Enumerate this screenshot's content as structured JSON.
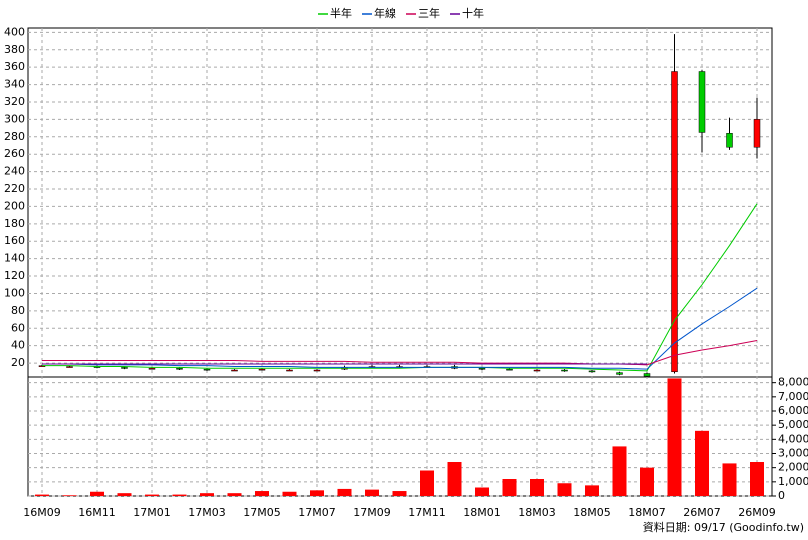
{
  "chart_data": {
    "type": "candlestick",
    "categories": [
      "16M09",
      null,
      "16M11",
      null,
      "17M01",
      null,
      "17M03",
      null,
      "17M05",
      null,
      "17M07",
      null,
      "17M09",
      null,
      "17M11",
      null,
      "18M01",
      null,
      "18M03",
      null,
      "18M05",
      null,
      "18M07",
      null,
      "26M07",
      null,
      "26M09"
    ],
    "open": [
      17,
      16,
      16,
      15,
      14,
      14,
      13,
      12,
      13,
      12,
      12,
      13,
      15,
      15,
      16,
      16,
      14,
      13,
      12,
      12,
      11,
      9,
      8,
      10,
      355,
      284,
      268
    ],
    "high": [
      18,
      17,
      17,
      16,
      15,
      15,
      14,
      13,
      14,
      13,
      13,
      17,
      18,
      18,
      18,
      18,
      15,
      14,
      13,
      13,
      12,
      10,
      9,
      398,
      357,
      302,
      325
    ],
    "low": [
      16,
      15,
      14,
      13,
      13,
      12,
      11,
      11,
      12,
      11,
      11,
      12,
      14,
      14,
      15,
      13,
      12,
      12,
      11,
      10,
      9,
      6,
      4,
      8,
      262,
      265,
      255
    ],
    "close": [
      17,
      16,
      15,
      14,
      14,
      13,
      12,
      12,
      13,
      12,
      12,
      15,
      16,
      16,
      16,
      14,
      13,
      12,
      12,
      11,
      10,
      7,
      5,
      355,
      285,
      268,
      300
    ],
    "up_color": "#ff0000",
    "down_color": "#00cc00",
    "series": [
      {
        "name": "半年",
        "color": "#00cc00",
        "values": [
          17,
          17,
          16,
          16,
          15,
          15,
          14,
          14,
          14,
          14,
          14,
          14,
          14,
          14,
          15,
          15,
          15,
          14,
          14,
          14,
          13,
          12,
          11,
          69,
          110,
          155,
          203
        ]
      },
      {
        "name": "年線",
        "color": "#0055cc",
        "values": [
          19,
          19,
          18,
          18,
          18,
          17,
          17,
          16,
          16,
          16,
          15,
          15,
          15,
          15,
          15,
          15,
          15,
          15,
          15,
          15,
          14,
          14,
          13,
          43,
          65,
          85,
          106
        ]
      },
      {
        "name": "三年",
        "color": "#cc0055",
        "values": [
          23,
          23,
          23,
          23,
          23,
          23,
          23,
          23,
          22,
          22,
          22,
          22,
          21,
          21,
          21,
          21,
          20,
          20,
          20,
          20,
          19,
          19,
          18,
          29,
          35,
          40,
          46
        ]
      },
      {
        "name": "十年",
        "color": "#660099",
        "values": [
          19,
          19,
          19,
          19,
          19,
          19,
          19,
          19,
          19,
          19,
          19,
          19,
          19,
          19,
          19,
          19,
          19,
          19,
          19,
          19,
          19,
          19,
          19,
          null,
          null,
          null,
          null
        ]
      }
    ],
    "ylim": [
      4,
      405
    ],
    "yticks": [
      20,
      40,
      60,
      80,
      100,
      120,
      140,
      160,
      180,
      200,
      220,
      240,
      260,
      280,
      300,
      320,
      340,
      360,
      380,
      400
    ],
    "volume": {
      "color": "#ff0000",
      "values": [
        100,
        50,
        300,
        200,
        100,
        100,
        200,
        200,
        350,
        300,
        400,
        500,
        450,
        350,
        1800,
        2400,
        600,
        1200,
        1200,
        900,
        750,
        3500,
        2000,
        8300,
        4600,
        2300,
        2400
      ],
      "ylim": [
        0,
        8400
      ],
      "yticks": [
        0,
        {
          "value": 1000,
          "label": "1,000"
        },
        {
          "value": 2000,
          "label": "2,000"
        },
        {
          "value": 3000,
          "label": "3,000"
        },
        {
          "value": 4000,
          "label": "4,000"
        },
        {
          "value": 5000,
          "label": "5,000"
        },
        {
          "value": 6000,
          "label": "6,000"
        },
        {
          "value": 7000,
          "label": "7,000"
        },
        {
          "value": 8000,
          "label": "8,000"
        }
      ]
    },
    "grid": true,
    "source": "資料日期: 09/17  (Goodinfo.tw)"
  }
}
